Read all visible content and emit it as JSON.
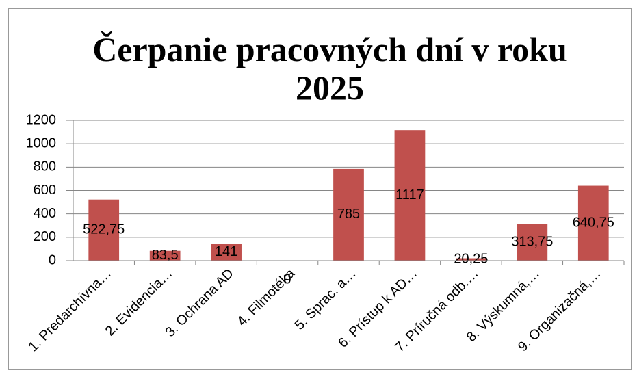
{
  "chart_data": {
    "type": "bar",
    "title": "Čerpanie pracovných dní v roku 2025",
    "categories": [
      "1. Predarchívna…",
      "2. Evidencia…",
      "3. Ochrana AD",
      "4. Filmotéka",
      "5. Sprac. a…",
      "6. Prístup k AD…",
      "7. Príručná odb.…",
      "8. Výskumná,…",
      "9. Organizačná,…"
    ],
    "values": [
      522.75,
      83.5,
      141,
      0,
      785,
      1117,
      20.25,
      313.75,
      640.75
    ],
    "value_labels": [
      "522,75",
      "83,5",
      "141",
      "0",
      "785",
      "1117",
      "20,25",
      "313,75",
      "640,75"
    ],
    "color": "#c0504d",
    "ylim": [
      0,
      1200
    ],
    "yticks": [
      0,
      200,
      400,
      600,
      800,
      1000,
      1200
    ],
    "grid": true
  }
}
